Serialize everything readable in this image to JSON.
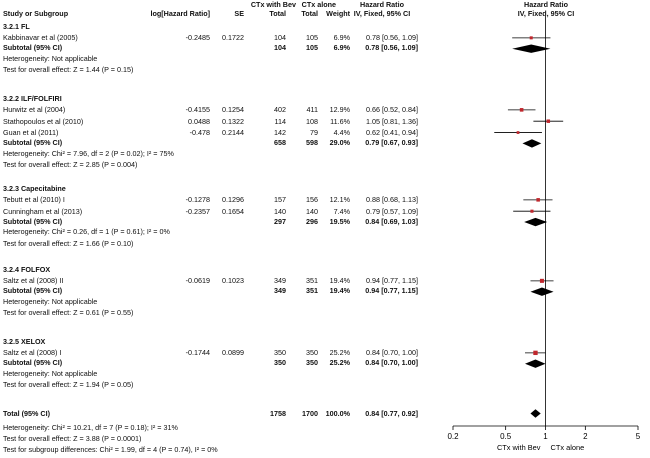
{
  "header": {
    "study": "Study or Subgroup",
    "loghr": "log[Hazard Ratio]",
    "se": "SE",
    "bev": "CTx with Bev",
    "alone": "CTx alone",
    "total1": "Total",
    "total2": "Total",
    "weight": "Weight",
    "hr1": "Hazard Ratio",
    "ci1": "IV, Fixed, 95% CI",
    "hr2": "Hazard Ratio",
    "ci2": "IV, Fixed, 95% CI"
  },
  "groups": [
    {
      "title": "3.2.1 FL",
      "studies": [
        {
          "name": "Kabbinavar et al (2005)",
          "loghr": "-0.2485",
          "se": "0.1722",
          "n1": "104",
          "n2": "105",
          "weight": "6.9%",
          "ci": "0.78 [0.56, 1.09]"
        }
      ],
      "subtotal": {
        "label": "Subtotal (95% CI)",
        "n1": "104",
        "n2": "105",
        "weight": "6.9%",
        "ci": "0.78 [0.56, 1.09]"
      },
      "het": "Heterogeneity: Not applicable",
      "test": "Test for overall effect: Z = 1.44 (P = 0.15)"
    },
    {
      "title": "3.2.2 ILF/FOLFIRI",
      "studies": [
        {
          "name": "Hurwitz et al (2004)",
          "loghr": "-0.4155",
          "se": "0.1254",
          "n1": "402",
          "n2": "411",
          "weight": "12.9%",
          "ci": "0.66 [0.52, 0.84]"
        },
        {
          "name": "Stathopoulos et al (2010)",
          "loghr": "0.0488",
          "se": "0.1322",
          "n1": "114",
          "n2": "108",
          "weight": "11.6%",
          "ci": "1.05 [0.81, 1.36]"
        },
        {
          "name": "Guan et al (2011)",
          "loghr": "-0.478",
          "se": "0.2144",
          "n1": "142",
          "n2": "79",
          "weight": "4.4%",
          "ci": "0.62 [0.41, 0.94]"
        }
      ],
      "subtotal": {
        "label": "Subtotal (95% CI)",
        "n1": "658",
        "n2": "598",
        "weight": "29.0%",
        "ci": "0.79 [0.67, 0.93]"
      },
      "het": "Heterogeneity: Chi² = 7.96, df = 2 (P = 0.02); I² = 75%",
      "test": "Test for overall effect: Z = 2.85 (P = 0.004)"
    },
    {
      "title": "3.2.3 Capecitabine",
      "studies": [
        {
          "name": "Tebutt et al (2010) I",
          "loghr": "-0.1278",
          "se": "0.1296",
          "n1": "157",
          "n2": "156",
          "weight": "12.1%",
          "ci": "0.88 [0.68, 1.13]"
        },
        {
          "name": "Cunningham et al (2013)",
          "loghr": "-0.2357",
          "se": "0.1654",
          "n1": "140",
          "n2": "140",
          "weight": "7.4%",
          "ci": "0.79 [0.57, 1.09]"
        }
      ],
      "subtotal": {
        "label": "Subtotal (95% CI)",
        "n1": "297",
        "n2": "296",
        "weight": "19.5%",
        "ci": "0.84 [0.69, 1.03]"
      },
      "het": "Heterogeneity: Chi² = 0.26, df = 1 (P = 0.61); I² = 0%",
      "test": "Test for overall effect: Z = 1.66 (P = 0.10)"
    },
    {
      "title": "3.2.4 FOLFOX",
      "studies": [
        {
          "name": "Saltz et al (2008) II",
          "loghr": "-0.0619",
          "se": "0.1023",
          "n1": "349",
          "n2": "351",
          "weight": "19.4%",
          "ci": "0.94 [0.77, 1.15]"
        }
      ],
      "subtotal": {
        "label": "Subtotal (95% CI)",
        "n1": "349",
        "n2": "351",
        "weight": "19.4%",
        "ci": "0.94 [0.77, 1.15]"
      },
      "het": "Heterogeneity: Not applicable",
      "test": "Test for overall effect: Z = 0.61 (P = 0.55)"
    },
    {
      "title": "3.2.5 XELOX",
      "studies": [
        {
          "name": "Saltz et al (2008) I",
          "loghr": "-0.1744",
          "se": "0.0899",
          "n1": "350",
          "n2": "350",
          "weight": "25.2%",
          "ci": "0.84 [0.70, 1.00]"
        }
      ],
      "subtotal": {
        "label": "Subtotal (95% CI)",
        "n1": "350",
        "n2": "350",
        "weight": "25.2%",
        "ci": "0.84 [0.70, 1.00]"
      },
      "het": "Heterogeneity: Not applicable",
      "test": "Test for overall effect: Z = 1.94 (P = 0.05)"
    }
  ],
  "total": {
    "label": "Total (95% CI)",
    "n1": "1758",
    "n2": "1700",
    "weight": "100.0%",
    "ci": "0.84 [0.77, 0.92]"
  },
  "footer": {
    "het": "Heterogeneity: Chi² = 10.21, df = 7 (P = 0.18); I² = 31%",
    "test": "Test for overall effect: Z = 3.88 (P = 0.0001)",
    "subgroup": "Test for subgroup differences: Chi² = 1.99, df = 4 (P = 0.74), I² = 0%"
  },
  "colors": {
    "marker": "#c0272d",
    "diamond": "#000000",
    "line": "#000000"
  },
  "chart_data": {
    "type": "forest",
    "title": "Hazard Ratio IV, Fixed, 95% CI",
    "xscale": "log",
    "xlim": [
      0.2,
      5
    ],
    "xticks": [
      "0.2",
      "0.5",
      "1",
      "2",
      "5"
    ],
    "xlabel_left": "CTx with Bev",
    "xlabel_right": "CTx alone",
    "studies": [
      {
        "name": "Kabbinavar et al (2005)",
        "hr": 0.78,
        "lo": 0.56,
        "hi": 1.09,
        "weight": 6.9
      },
      {
        "name": "Hurwitz et al (2004)",
        "hr": 0.66,
        "lo": 0.52,
        "hi": 0.84,
        "weight": 12.9
      },
      {
        "name": "Stathopoulos et al (2010)",
        "hr": 1.05,
        "lo": 0.81,
        "hi": 1.36,
        "weight": 11.6
      },
      {
        "name": "Guan et al (2011)",
        "hr": 0.62,
        "lo": 0.41,
        "hi": 0.94,
        "weight": 4.4
      },
      {
        "name": "Tebutt et al (2010) I",
        "hr": 0.88,
        "lo": 0.68,
        "hi": 1.13,
        "weight": 12.1
      },
      {
        "name": "Cunningham et al (2013)",
        "hr": 0.79,
        "lo": 0.57,
        "hi": 1.09,
        "weight": 7.4
      },
      {
        "name": "Saltz et al (2008) II",
        "hr": 0.94,
        "lo": 0.77,
        "hi": 1.15,
        "weight": 19.4
      },
      {
        "name": "Saltz et al (2008) I",
        "hr": 0.84,
        "lo": 0.7,
        "hi": 1.0,
        "weight": 25.2
      }
    ],
    "subtotals": [
      {
        "name": "3.2.1 FL",
        "hr": 0.78,
        "lo": 0.56,
        "hi": 1.09
      },
      {
        "name": "3.2.2 ILF/FOLFIRI",
        "hr": 0.79,
        "lo": 0.67,
        "hi": 0.93
      },
      {
        "name": "3.2.3 Capecitabine",
        "hr": 0.84,
        "lo": 0.69,
        "hi": 1.03
      },
      {
        "name": "3.2.4 FOLFOX",
        "hr": 0.94,
        "lo": 0.77,
        "hi": 1.15
      },
      {
        "name": "3.2.5 XELOX",
        "hr": 0.84,
        "lo": 0.7,
        "hi": 1.0
      }
    ],
    "overall": {
      "name": "Total (95% CI)",
      "hr": 0.84,
      "lo": 0.77,
      "hi": 0.92
    }
  }
}
